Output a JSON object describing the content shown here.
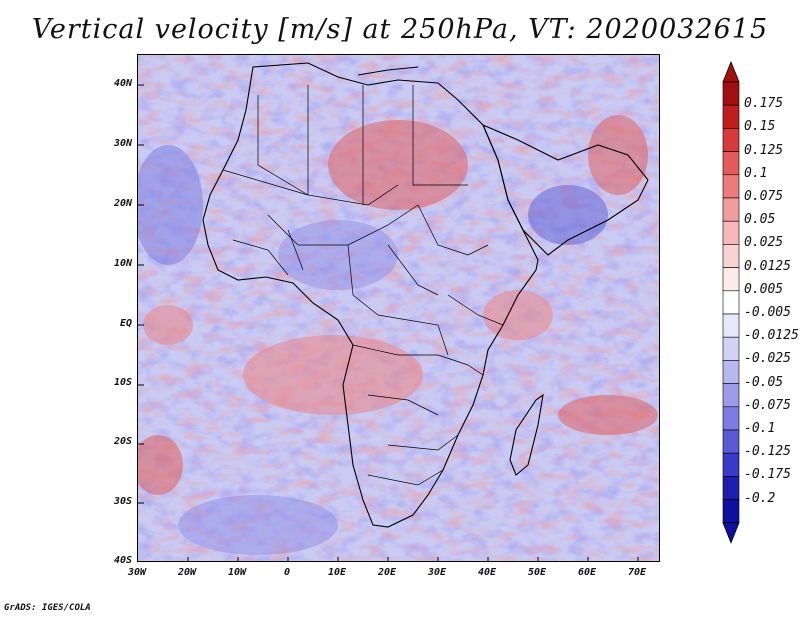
{
  "title": "Vertical velocity [m/s] at 250hPa, VT: 2020032615",
  "footer": "GrADS: IGES/COLA",
  "map": {
    "region": "Africa",
    "lon_range": [
      -30,
      75
    ],
    "lat_range": [
      -40,
      45
    ],
    "lat_ticks": [
      "40N",
      "30N",
      "20N",
      "10N",
      "EQ",
      "10S",
      "20S",
      "30S",
      "40S"
    ],
    "lon_ticks": [
      "30W",
      "20W",
      "10W",
      "0",
      "10E",
      "20E",
      "30E",
      "40E",
      "50E",
      "60E",
      "70E"
    ],
    "lat_values": [
      40,
      30,
      20,
      10,
      0,
      -10,
      -20,
      -30,
      -40
    ],
    "lon_values": [
      -30,
      -20,
      -10,
      0,
      10,
      20,
      30,
      40,
      50,
      60,
      70
    ]
  },
  "colorbar": {
    "labels": [
      "0.175",
      "0.15",
      "0.125",
      "0.1",
      "0.075",
      "0.05",
      "0.025",
      "0.0125",
      "0.005",
      "-0.005",
      "-0.0125",
      "-0.025",
      "-0.05",
      "-0.075",
      "-0.1",
      "-0.125",
      "-0.175",
      "-0.2"
    ],
    "colors": [
      "#a01010",
      "#c01d1d",
      "#d63a3a",
      "#e25a5a",
      "#ec7c7c",
      "#f29c9c",
      "#f6b8b8",
      "#f9d2d2",
      "#fdeaea",
      "#ffffff",
      "#e8e8fb",
      "#d2d2f6",
      "#b8b8f0",
      "#9c9ceb",
      "#7c7ce2",
      "#5a5ad6",
      "#3a3ac8",
      "#1d1db0",
      "#1010a0"
    ],
    "top_arrow_color": "#a01010",
    "bottom_arrow_color": "#1010a0"
  }
}
